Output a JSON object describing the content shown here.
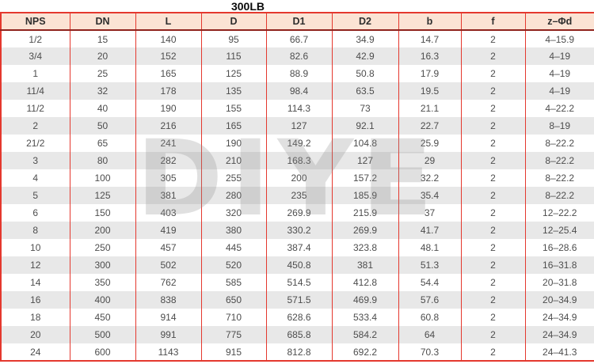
{
  "title": "300LB",
  "watermark": "DIYE",
  "colors": {
    "border_red": "#e4382e",
    "header_border_bottom": "#8f231d",
    "header_bg": "#fbe3d4",
    "row_alt_bg": "#e8e8e8",
    "body_text": "#4d4d4d"
  },
  "table": {
    "headers": [
      "NPS",
      "DN",
      "L",
      "D",
      "D1",
      "D2",
      "b",
      "f",
      "z–Φd"
    ],
    "header_keys": [
      "nps",
      "dn",
      "l",
      "d",
      "d1",
      "d2",
      "b",
      "f",
      "z-phi-d"
    ],
    "rows": [
      [
        "1/2",
        "15",
        "140",
        "95",
        "66.7",
        "34.9",
        "14.7",
        "2",
        "4–15.9"
      ],
      [
        "3/4",
        "20",
        "152",
        "115",
        "82.6",
        "42.9",
        "16.3",
        "2",
        "4–19"
      ],
      [
        "1",
        "25",
        "165",
        "125",
        "88.9",
        "50.8",
        "17.9",
        "2",
        "4–19"
      ],
      [
        "11/4",
        "32",
        "178",
        "135",
        "98.4",
        "63.5",
        "19.5",
        "2",
        "4–19"
      ],
      [
        "11/2",
        "40",
        "190",
        "155",
        "114.3",
        "73",
        "21.1",
        "2",
        "4–22.2"
      ],
      [
        "2",
        "50",
        "216",
        "165",
        "127",
        "92.1",
        "22.7",
        "2",
        "8–19"
      ],
      [
        "21/2",
        "65",
        "241",
        "190",
        "149.2",
        "104.8",
        "25.9",
        "2",
        "8–22.2"
      ],
      [
        "3",
        "80",
        "282",
        "210",
        "168.3",
        "127",
        "29",
        "2",
        "8–22.2"
      ],
      [
        "4",
        "100",
        "305",
        "255",
        "200",
        "157.2",
        "32.2",
        "2",
        "8–22.2"
      ],
      [
        "5",
        "125",
        "381",
        "280",
        "235",
        "185.9",
        "35.4",
        "2",
        "8–22.2"
      ],
      [
        "6",
        "150",
        "403",
        "320",
        "269.9",
        "215.9",
        "37",
        "2",
        "12–22.2"
      ],
      [
        "8",
        "200",
        "419",
        "380",
        "330.2",
        "269.9",
        "41.7",
        "2",
        "12–25.4"
      ],
      [
        "10",
        "250",
        "457",
        "445",
        "387.4",
        "323.8",
        "48.1",
        "2",
        "16–28.6"
      ],
      [
        "12",
        "300",
        "502",
        "520",
        "450.8",
        "381",
        "51.3",
        "2",
        "16–31.8"
      ],
      [
        "14",
        "350",
        "762",
        "585",
        "514.5",
        "412.8",
        "54.4",
        "2",
        "20–31.8"
      ],
      [
        "16",
        "400",
        "838",
        "650",
        "571.5",
        "469.9",
        "57.6",
        "2",
        "20–34.9"
      ],
      [
        "18",
        "450",
        "914",
        "710",
        "628.6",
        "533.4",
        "60.8",
        "2",
        "24–34.9"
      ],
      [
        "20",
        "500",
        "991",
        "775",
        "685.8",
        "584.2",
        "64",
        "2",
        "24–34.9"
      ],
      [
        "24",
        "600",
        "1143",
        "915",
        "812.8",
        "692.2",
        "70.3",
        "2",
        "24–41.3"
      ]
    ]
  }
}
